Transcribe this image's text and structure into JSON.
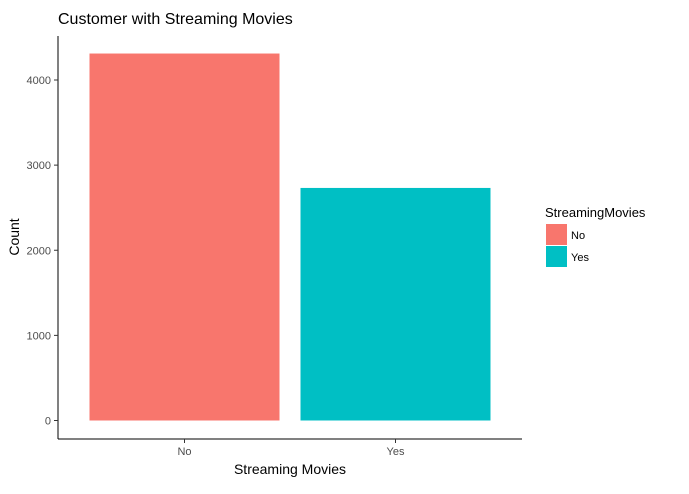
{
  "chart_data": {
    "type": "bar",
    "title": "Customer with Streaming Movies",
    "xlabel": "Streaming Movies",
    "ylabel": "Count",
    "categories": [
      "No",
      "Yes"
    ],
    "values": [
      4311,
      2732
    ],
    "colors": [
      "#F8766D",
      "#00BFC4"
    ],
    "ylim": [
      0,
      4500
    ],
    "yticks": [
      0,
      1000,
      2000,
      3000,
      4000
    ],
    "grid": false,
    "legend": {
      "title": "StreamingMovies",
      "placement": "right",
      "entries": [
        "No",
        "Yes"
      ]
    }
  }
}
